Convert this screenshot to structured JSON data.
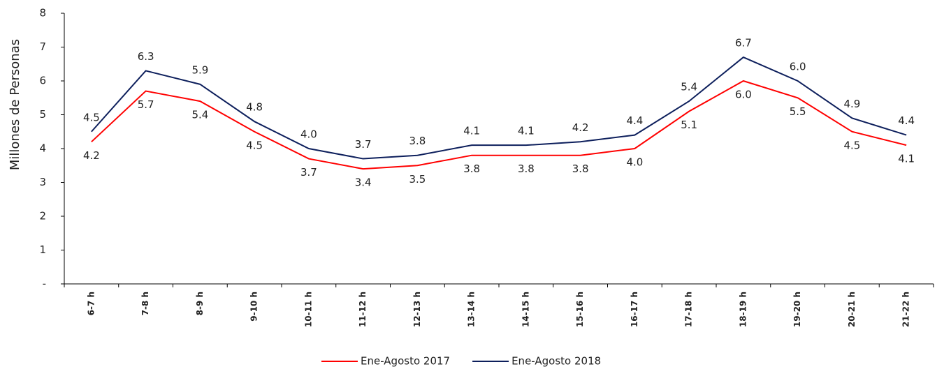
{
  "chart_data": {
    "type": "line",
    "y_label": "Millones de Personas",
    "categories": [
      "6-7 h",
      "7-8 h",
      "8-9 h",
      "9-10 h",
      "10-11 h",
      "11-12 h",
      "12-13 h",
      "13-14 h",
      "14-15 h",
      "15-16 h",
      "16-17 h",
      "17-18 h",
      "18-19 h",
      "19-20 h",
      "20-21 h",
      "21-22 h"
    ],
    "series": [
      {
        "name": "Ene-Agosto 2017",
        "color": "#ff0000",
        "values": [
          4.2,
          5.7,
          5.4,
          4.5,
          3.7,
          3.4,
          3.5,
          3.8,
          3.8,
          3.8,
          4.0,
          5.1,
          6.0,
          5.5,
          4.5,
          4.1
        ],
        "value_labels": [
          "4.2",
          "5.7",
          "5.4",
          "4.5",
          "3.7",
          "3.4",
          "3.5",
          "3.8",
          "3.8",
          "3.8",
          "4.0",
          "5.1",
          "6.0",
          "5.5",
          "4.5",
          "4.1"
        ]
      },
      {
        "name": "Ene-Agosto 2018",
        "color": "#0d1f5c",
        "values": [
          4.5,
          6.3,
          5.9,
          4.8,
          4.0,
          3.7,
          3.8,
          4.1,
          4.1,
          4.2,
          4.4,
          5.4,
          6.7,
          6.0,
          4.9,
          4.4
        ],
        "value_labels": [
          "4.5",
          "6.3",
          "5.9",
          "4.8",
          "4.0",
          "3.7",
          "3.8",
          "4.1",
          "4.1",
          "4.2",
          "4.4",
          "5.4",
          "6.7",
          "6.0",
          "4.9",
          "4.4"
        ]
      }
    ],
    "ylim": [
      0,
      8
    ],
    "yticks": [
      {
        "value": 0,
        "label": "-"
      },
      1,
      2,
      3,
      4,
      5,
      6,
      7,
      8
    ],
    "legend": "bottom"
  }
}
